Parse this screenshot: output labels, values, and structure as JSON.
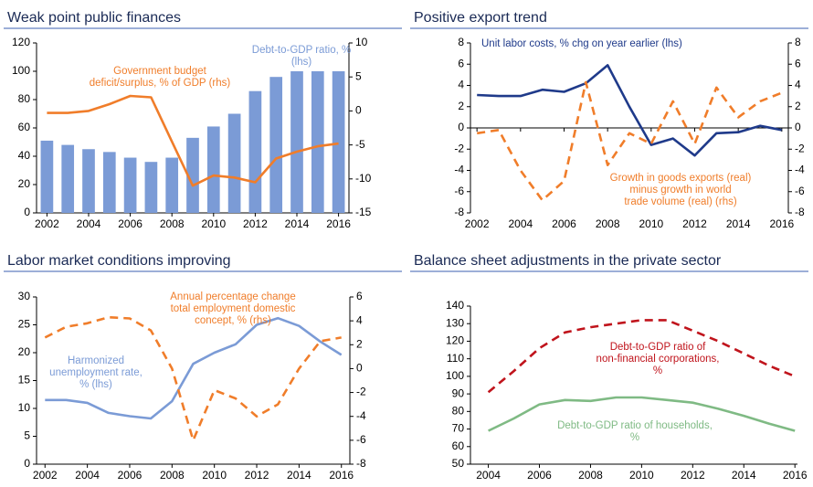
{
  "chart_data": [
    {
      "type": "bar",
      "title": "Weak point public finances",
      "x": [
        2002,
        2003,
        2004,
        2005,
        2006,
        2007,
        2008,
        2009,
        2010,
        2011,
        2012,
        2013,
        2014,
        2015,
        2016
      ],
      "xlim": [
        2001.5,
        2016.5
      ],
      "xticks": [
        2002,
        2004,
        2006,
        2008,
        2010,
        2012,
        2014,
        2016
      ],
      "ylim": [
        0,
        120
      ],
      "yticks": [
        0,
        20,
        40,
        60,
        80,
        100,
        120
      ],
      "y2lim": [
        -15,
        10
      ],
      "y2ticks": [
        -15,
        -10,
        -5,
        0,
        5,
        10
      ],
      "series": [
        {
          "name": [
            "Debt-to-GDP ratio, %",
            "(lhs)"
          ],
          "kind": "bar",
          "color": "#7b9bd6",
          "values": [
            51,
            48,
            45,
            43,
            39,
            36,
            39,
            53,
            61,
            70,
            86,
            96,
            100,
            100,
            100
          ]
        },
        {
          "name": [
            "Government budget",
            "deficit/surplus, % of GDP (rhs)"
          ],
          "kind": "line",
          "axis": "y2",
          "color": "#f07d2a",
          "values": [
            -0.3,
            -0.3,
            0,
            1,
            2.2,
            2,
            -4.5,
            -11,
            -9.5,
            -9.8,
            -10.5,
            -7,
            -6,
            -5.2,
            -4.8
          ]
        }
      ]
    },
    {
      "type": "line",
      "title": "Positive export trend",
      "x": [
        2002,
        2003,
        2004,
        2005,
        2006,
        2007,
        2008,
        2009,
        2010,
        2011,
        2012,
        2013,
        2014,
        2015,
        2016
      ],
      "xlim": [
        2001.7,
        2016.3
      ],
      "xticks": [
        2002,
        2004,
        2006,
        2008,
        2010,
        2012,
        2014,
        2016
      ],
      "ylim": [
        -8,
        8
      ],
      "yticks": [
        -8,
        -6,
        -4,
        -2,
        0,
        2,
        4,
        6,
        8
      ],
      "y2lim": [
        -8,
        8
      ],
      "y2ticks": [
        -8,
        -6,
        -4,
        -2,
        0,
        2,
        4,
        6,
        8
      ],
      "series": [
        {
          "name": [
            "Unit labor costs, % chg on year earlier (lhs)"
          ],
          "kind": "line",
          "color": "#1f3a8a",
          "values": [
            3.1,
            3,
            3,
            3.6,
            3.4,
            4.2,
            5.9,
            2,
            -1.6,
            -1,
            -2.6,
            -0.5,
            -0.4,
            0.2,
            -0.2
          ]
        },
        {
          "name": [
            "Growth in goods exports (real)",
            "minus growth in world",
            "trade volume (real) (rhs)"
          ],
          "kind": "line",
          "dash": true,
          "axis": "y2",
          "color": "#f07d2a",
          "values": [
            -0.5,
            -0.2,
            -4,
            -6.8,
            -5,
            4.3,
            -3.5,
            -0.5,
            -1.5,
            2.5,
            -1.5,
            3.8,
            1,
            2.5,
            3.3
          ]
        }
      ]
    },
    {
      "type": "line",
      "title": "Labor market conditions improving",
      "x": [
        2002,
        2003,
        2004,
        2005,
        2006,
        2007,
        2008,
        2009,
        2010,
        2011,
        2012,
        2013,
        2014,
        2015,
        2016
      ],
      "xlim": [
        2001.6,
        2016.4
      ],
      "xticks": [
        2002,
        2004,
        2006,
        2008,
        2010,
        2012,
        2014,
        2016
      ],
      "ylim": [
        0,
        30
      ],
      "yticks": [
        0,
        5,
        10,
        15,
        20,
        25,
        30
      ],
      "y2lim": [
        -8,
        6
      ],
      "y2ticks": [
        -8,
        -6,
        -4,
        -2,
        0,
        2,
        4,
        6
      ],
      "series": [
        {
          "name": [
            "Harmonized",
            "unemployment rate,",
            "% (lhs)"
          ],
          "kind": "line",
          "color": "#7b9bd6",
          "values": [
            11.5,
            11.5,
            11,
            9.2,
            8.6,
            8.2,
            11.3,
            18,
            20,
            21.5,
            25,
            26.2,
            24.8,
            22,
            19.6
          ]
        },
        {
          "name": [
            "Annual percentage change",
            "total employment domestic",
            "concept, % (rhs)"
          ],
          "kind": "line",
          "dash": true,
          "axis": "y2",
          "color": "#f07d2a",
          "values": [
            2.6,
            3.5,
            3.8,
            4.3,
            4.2,
            3.2,
            0,
            -6,
            -1.8,
            -2.5,
            -4,
            -3,
            0,
            2.3,
            2.6
          ]
        }
      ]
    },
    {
      "type": "line",
      "title": "Balance sheet adjustments in the private sector",
      "x": [
        2004,
        2005,
        2006,
        2007,
        2008,
        2009,
        2010,
        2011,
        2012,
        2013,
        2014,
        2015,
        2016
      ],
      "xlim": [
        2003.3,
        2016.1
      ],
      "xticks": [
        2004,
        2006,
        2008,
        2010,
        2012,
        2014,
        2016
      ],
      "ylim": [
        50,
        140
      ],
      "yticks": [
        50,
        60,
        70,
        80,
        90,
        100,
        110,
        120,
        130,
        140
      ],
      "series": [
        {
          "name": [
            "Debt-to-GDP ratio of",
            "non-financial corporations,",
            "%"
          ],
          "kind": "line",
          "dash": true,
          "color": "#c0141c",
          "values": [
            91,
            103,
            116,
            125,
            128,
            130,
            132,
            132,
            126,
            120,
            113,
            106,
            100
          ]
        },
        {
          "name": [
            "Debt-to-GDP ratio of households,",
            "%"
          ],
          "kind": "line",
          "color": "#7fba84",
          "values": [
            69,
            76,
            84,
            86.5,
            86,
            88,
            88,
            86.5,
            85,
            81.5,
            77.5,
            73,
            69
          ]
        }
      ]
    }
  ]
}
